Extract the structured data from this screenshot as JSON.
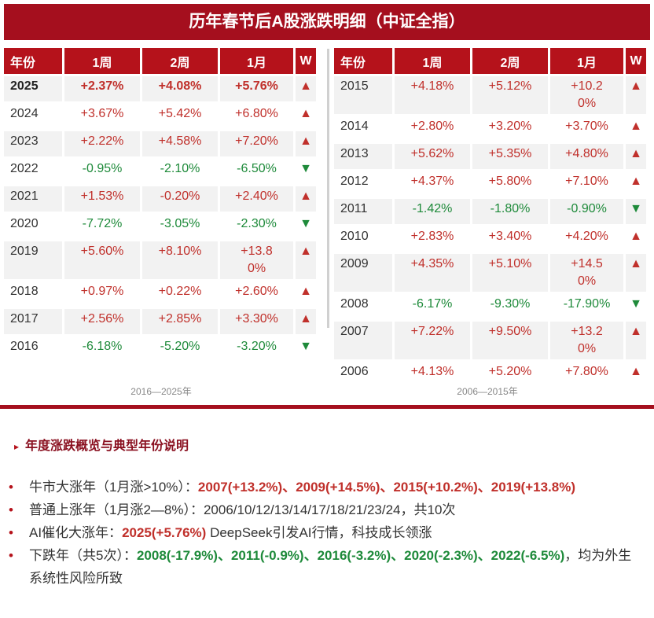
{
  "title": "历年春节后A股涨跌明细（中证全指）",
  "tables": [
    {
      "headers": [
        "年份",
        "1周",
        "2周",
        "1月",
        "W"
      ],
      "rows": [
        {
          "cells": [
            "2025",
            "+2.37%",
            "+4.08%",
            "+5.76%",
            "▲"
          ],
          "trend": "up",
          "bold": true
        },
        {
          "cells": [
            "2024",
            "+3.67%",
            "+5.42%",
            "+6.80%",
            "▲"
          ],
          "trend": "up"
        },
        {
          "cells": [
            "2023",
            "+2.22%",
            "+4.58%",
            "+7.20%",
            "▲"
          ],
          "trend": "up"
        },
        {
          "cells": [
            "2022",
            "-0.95%",
            "-2.10%",
            "-6.50%",
            "▼"
          ],
          "trend": "down"
        },
        {
          "cells": [
            "2021",
            "+1.53%",
            "-0.20%",
            "+2.40%",
            "▲"
          ],
          "trend": "up"
        },
        {
          "cells": [
            "2020",
            "-7.72%",
            "-3.05%",
            "-2.30%",
            "▼"
          ],
          "trend": "down"
        },
        {
          "cells": [
            "2019",
            "+5.60%",
            "+8.10%",
            "+13.80%",
            "▲"
          ],
          "trend": "up"
        },
        {
          "cells": [
            "2018",
            "+0.97%",
            "+0.22%",
            "+2.60%",
            "▲"
          ],
          "trend": "up"
        },
        {
          "cells": [
            "2017",
            "+2.56%",
            "+2.85%",
            "+3.30%",
            "▲"
          ],
          "trend": "up"
        },
        {
          "cells": [
            "2016",
            "-6.18%",
            "-5.20%",
            "-3.20%",
            "▼"
          ],
          "trend": "down"
        }
      ],
      "caption": "2016—2025年"
    },
    {
      "headers": [
        "年份",
        "1周",
        "2周",
        "1月",
        "W"
      ],
      "rows": [
        {
          "cells": [
            "2015",
            "+4.18%",
            "+5.12%",
            "+10.20%",
            "▲"
          ],
          "trend": "up"
        },
        {
          "cells": [
            "2014",
            "+2.80%",
            "+3.20%",
            "+3.70%",
            "▲"
          ],
          "trend": "up"
        },
        {
          "cells": [
            "2013",
            "+5.62%",
            "+5.35%",
            "+4.80%",
            "▲"
          ],
          "trend": "up"
        },
        {
          "cells": [
            "2012",
            "+4.37%",
            "+5.80%",
            "+7.10%",
            "▲"
          ],
          "trend": "up"
        },
        {
          "cells": [
            "2011",
            "-1.42%",
            "-1.80%",
            "-0.90%",
            "▼"
          ],
          "trend": "down"
        },
        {
          "cells": [
            "2010",
            "+2.83%",
            "+3.40%",
            "+4.20%",
            "▲"
          ],
          "trend": "up"
        },
        {
          "cells": [
            "2009",
            "+4.35%",
            "+5.10%",
            "+14.50%",
            "▲"
          ],
          "trend": "up"
        },
        {
          "cells": [
            "2008",
            "-6.17%",
            "-9.30%",
            "-17.90%",
            "▼"
          ],
          "trend": "down"
        },
        {
          "cells": [
            "2007",
            "+7.22%",
            "+9.50%",
            "+13.20%",
            "▲"
          ],
          "trend": "up"
        },
        {
          "cells": [
            "2006",
            "+4.13%",
            "+5.20%",
            "+7.80%",
            "▲"
          ],
          "trend": "up"
        }
      ],
      "caption": "2006—2015年"
    }
  ],
  "section_title": "年度涨跌概览与典型年份说明",
  "bullets": [
    [
      {
        "text": "牛市大涨年（1月涨>10%）：",
        "tone": "plain"
      },
      {
        "text": "2007(+13.2%)、2009(+14.5%)、2015(+10.2%)、2019(+13.8%)",
        "tone": "up"
      }
    ],
    [
      {
        "text": "普通上涨年（1月涨2—8%）：2006/10/12/13/14/17/18/21/23/24，共10次",
        "tone": "plain"
      }
    ],
    [
      {
        "text": "AI催化大涨年：",
        "tone": "plain"
      },
      {
        "text": "2025(+5.76%)",
        "tone": "up"
      },
      {
        "text": " DeepSeek引发AI行情，科技成长领涨",
        "tone": "plain"
      }
    ],
    [
      {
        "text": "下跌年（共5次）：",
        "tone": "plain"
      },
      {
        "text": "2008(-17.9%)、2011(-0.9%)、2016(-3.2%)、2020(-2.3%)、2022(-6.5%)",
        "tone": "down"
      },
      {
        "text": "，均为外生系统性风险所致",
        "tone": "plain"
      }
    ]
  ]
}
